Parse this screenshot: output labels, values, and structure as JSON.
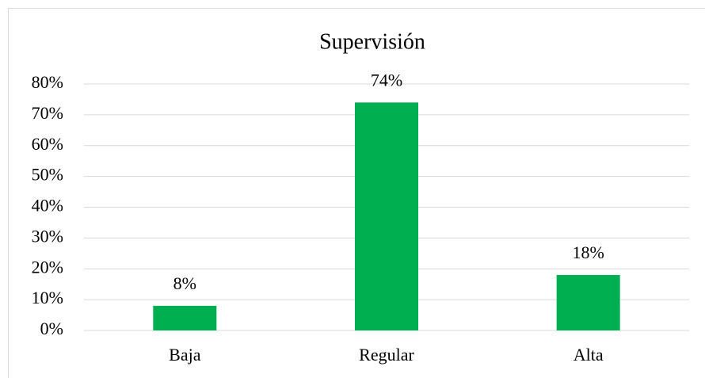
{
  "chart_data": {
    "type": "bar",
    "title": "Supervisión",
    "categories": [
      "Baja",
      "Regular",
      "Alta"
    ],
    "values": [
      8,
      74,
      18
    ],
    "value_labels": [
      "8%",
      "74%",
      "18%"
    ],
    "color": "#00b050",
    "ylim": [
      0,
      80
    ],
    "yticks": [
      {
        "value": 0,
        "label": "0%"
      },
      {
        "value": 10,
        "label": "10%"
      },
      {
        "value": 20,
        "label": "20%"
      },
      {
        "value": 30,
        "label": "30%"
      },
      {
        "value": 40,
        "label": "40%"
      },
      {
        "value": 50,
        "label": "50%"
      },
      {
        "value": 60,
        "label": "60%"
      },
      {
        "value": 70,
        "label": "70%"
      },
      {
        "value": 80,
        "label": "80%"
      }
    ],
    "grid": true
  }
}
